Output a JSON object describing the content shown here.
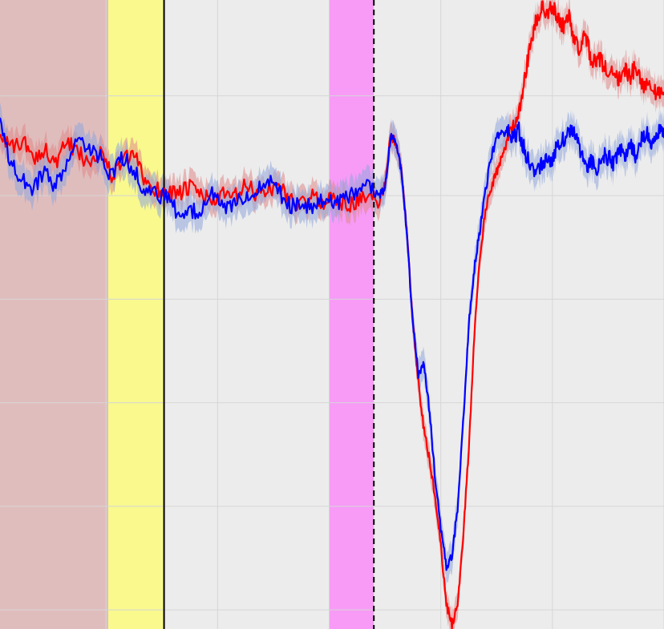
{
  "chart_data": {
    "type": "line",
    "title": "",
    "xlabel": "",
    "ylabel": "",
    "xlim": [
      -1.95,
      4.0
    ],
    "ylim": [
      -1.98,
      1.3
    ],
    "grid": true,
    "legend": "none",
    "background": "#ececec",
    "grid_color": "#d6d6d6",
    "x_gridlines": [
      -1.0,
      0.0,
      1.0,
      2.0,
      3.0,
      4.0
    ],
    "y_gridlines": [
      0.8,
      0.28,
      -0.26,
      -0.8,
      -1.34,
      -1.88
    ],
    "shaded_regions": [
      {
        "x0": -1.95,
        "x1": -0.98,
        "color": "#cc6666",
        "opacity": 0.35
      },
      {
        "x0": -0.98,
        "x1": -0.48,
        "color": "#ffff66",
        "opacity": 0.7
      },
      {
        "x0": 1.0,
        "x1": 1.4,
        "color": "#ff66ff",
        "opacity": 0.6
      }
    ],
    "vertical_lines": [
      {
        "x": -0.48,
        "style": "solid",
        "color": "#000000"
      },
      {
        "x": 1.4,
        "style": "dashed",
        "color": "#000000"
      }
    ],
    "series": [
      {
        "color": "#ff0000",
        "band_color": "#e08888",
        "band_halfwidth": 0.07,
        "x": [
          -1.95,
          -1.85,
          -1.75,
          -1.65,
          -1.55,
          -1.45,
          -1.35,
          -1.25,
          -1.15,
          -1.05,
          -0.95,
          -0.85,
          -0.75,
          -0.65,
          -0.55,
          -0.45,
          -0.35,
          -0.25,
          -0.15,
          -0.05,
          0.05,
          0.15,
          0.25,
          0.35,
          0.45,
          0.55,
          0.65,
          0.75,
          0.85,
          0.95,
          1.05,
          1.15,
          1.25,
          1.35,
          1.45,
          1.5,
          1.55,
          1.6,
          1.65,
          1.7,
          1.75,
          1.8,
          1.85,
          1.9,
          1.95,
          2.0,
          2.05,
          2.1,
          2.15,
          2.2,
          2.25,
          2.3,
          2.35,
          2.4,
          2.45,
          2.5,
          2.55,
          2.6,
          2.65,
          2.7,
          2.75,
          2.8,
          2.85,
          2.9,
          2.95,
          3.0,
          3.05,
          3.1,
          3.15,
          3.2,
          3.25,
          3.3,
          3.35,
          3.4,
          3.45,
          3.5,
          3.55,
          3.6,
          3.65,
          3.7,
          3.75,
          3.8,
          3.85,
          3.9,
          3.95,
          4.0
        ],
        "y": [
          0.62,
          0.52,
          0.57,
          0.47,
          0.53,
          0.44,
          0.56,
          0.5,
          0.46,
          0.52,
          0.38,
          0.46,
          0.49,
          0.36,
          0.31,
          0.31,
          0.29,
          0.32,
          0.29,
          0.25,
          0.28,
          0.27,
          0.33,
          0.29,
          0.31,
          0.33,
          0.26,
          0.23,
          0.27,
          0.25,
          0.27,
          0.23,
          0.25,
          0.27,
          0.25,
          0.34,
          0.6,
          0.55,
          0.4,
          0.05,
          -0.4,
          -0.7,
          -0.95,
          -1.1,
          -1.3,
          -1.55,
          -1.85,
          -1.96,
          -1.85,
          -1.5,
          -1.05,
          -0.45,
          -0.05,
          0.2,
          0.32,
          0.4,
          0.48,
          0.58,
          0.65,
          0.72,
          0.88,
          1.06,
          1.18,
          1.26,
          1.22,
          1.28,
          1.2,
          1.16,
          1.22,
          1.08,
          1.05,
          1.12,
          0.97,
          1.0,
          0.97,
          0.92,
          0.94,
          0.88,
          0.94,
          0.9,
          0.96,
          0.85,
          0.88,
          0.85,
          0.8,
          0.82
        ]
      },
      {
        "color": "#0000ff",
        "band_color": "#8fa5dd",
        "band_halfwidth": 0.08,
        "x": [
          -1.95,
          -1.85,
          -1.75,
          -1.65,
          -1.55,
          -1.45,
          -1.35,
          -1.25,
          -1.15,
          -1.05,
          -0.95,
          -0.85,
          -0.75,
          -0.65,
          -0.55,
          -0.45,
          -0.35,
          -0.25,
          -0.15,
          -0.05,
          0.05,
          0.15,
          0.25,
          0.35,
          0.45,
          0.55,
          0.65,
          0.75,
          0.85,
          0.95,
          1.05,
          1.15,
          1.25,
          1.35,
          1.45,
          1.5,
          1.55,
          1.6,
          1.65,
          1.7,
          1.75,
          1.8,
          1.85,
          1.9,
          1.95,
          2.0,
          2.05,
          2.1,
          2.15,
          2.2,
          2.25,
          2.3,
          2.35,
          2.4,
          2.45,
          2.5,
          2.55,
          2.6,
          2.65,
          2.7,
          2.75,
          2.8,
          2.85,
          2.9,
          2.95,
          3.0,
          3.05,
          3.1,
          3.15,
          3.2,
          3.25,
          3.3,
          3.35,
          3.4,
          3.45,
          3.5,
          3.55,
          3.6,
          3.65,
          3.7,
          3.75,
          3.8,
          3.85,
          3.9,
          3.95,
          4.0
        ],
        "y": [
          0.66,
          0.44,
          0.36,
          0.32,
          0.4,
          0.33,
          0.45,
          0.56,
          0.52,
          0.48,
          0.38,
          0.48,
          0.42,
          0.3,
          0.28,
          0.27,
          0.18,
          0.2,
          0.21,
          0.3,
          0.2,
          0.25,
          0.27,
          0.32,
          0.38,
          0.3,
          0.22,
          0.25,
          0.2,
          0.27,
          0.24,
          0.27,
          0.3,
          0.32,
          0.28,
          0.32,
          0.58,
          0.56,
          0.4,
          0.05,
          -0.4,
          -0.65,
          -0.6,
          -0.85,
          -1.2,
          -1.45,
          -1.66,
          -1.6,
          -1.35,
          -0.9,
          -0.4,
          -0.1,
          0.1,
          0.3,
          0.48,
          0.58,
          0.6,
          0.62,
          0.58,
          0.62,
          0.52,
          0.44,
          0.4,
          0.45,
          0.48,
          0.46,
          0.55,
          0.58,
          0.6,
          0.62,
          0.52,
          0.42,
          0.46,
          0.4,
          0.5,
          0.48,
          0.44,
          0.52,
          0.5,
          0.55,
          0.48,
          0.58,
          0.6,
          0.55,
          0.62,
          0.58
        ]
      }
    ]
  }
}
